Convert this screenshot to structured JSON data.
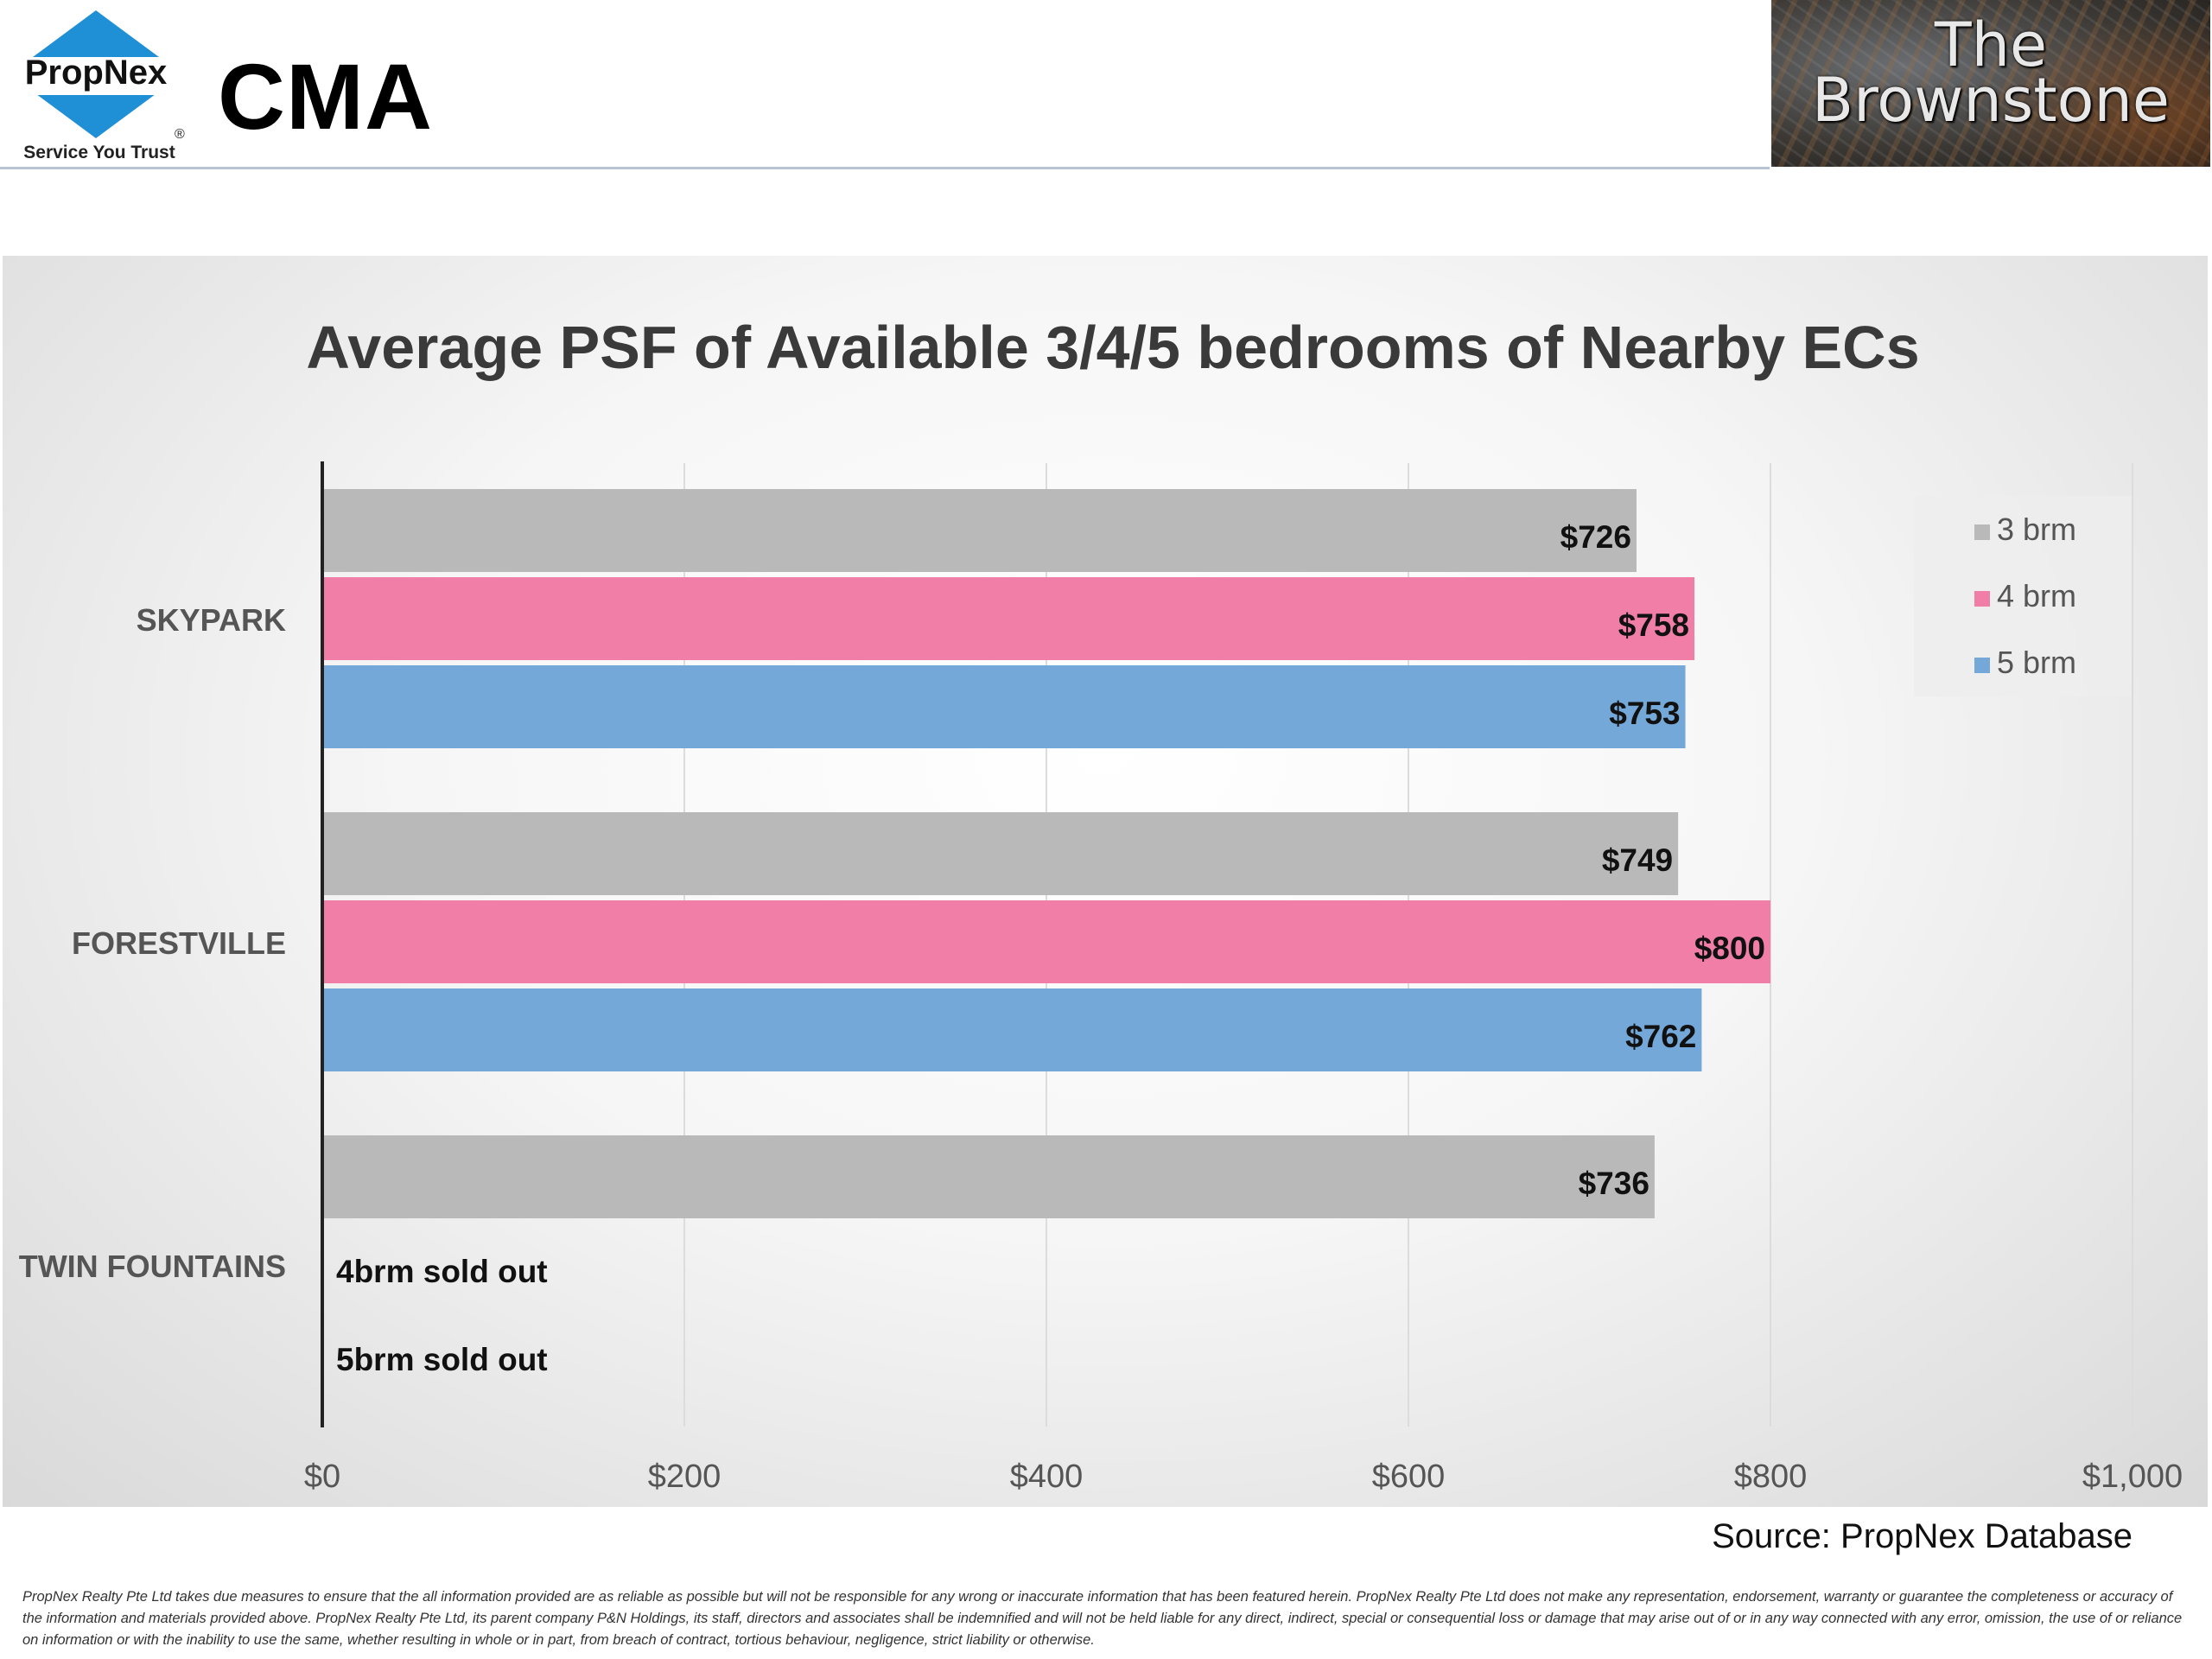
{
  "header": {
    "brand_name": "PropNex",
    "brand_tagline": "Service You Trust",
    "registered_mark": "®",
    "title": "CMA",
    "project_logo_text": "The Brownstone",
    "colors": {
      "brand_blue": "#1f8fd6",
      "brand_blue_light": "#cfe6f7"
    }
  },
  "chart_data": {
    "type": "bar",
    "orientation": "horizontal",
    "title": "Average PSF of Available 3/4/5 bedrooms of Nearby ECs",
    "xlabel": "",
    "ylabel": "",
    "xlim": [
      0,
      1000
    ],
    "x_ticks": [
      "$0",
      "$200",
      "$400",
      "$600",
      "$800",
      "$1,000"
    ],
    "x_tick_values": [
      0,
      200,
      400,
      600,
      800,
      1000
    ],
    "grid": "vertical",
    "legend_position": "top-right",
    "categories": [
      "SKYPARK",
      "FORESTVILLE",
      "TWIN FOUNTAINS"
    ],
    "series": [
      {
        "name": "3 brm",
        "color": "#b9b9b9",
        "values": [
          726,
          749,
          736
        ],
        "labels": [
          "$726",
          "$749",
          "$736"
        ]
      },
      {
        "name": "4 brm",
        "color": "#f07ea6",
        "values": [
          758,
          800,
          null
        ],
        "labels": [
          "$758",
          "$800",
          "4brm sold out"
        ]
      },
      {
        "name": "5 brm",
        "color": "#74a8d8",
        "values": [
          753,
          762,
          null
        ],
        "labels": [
          "$753",
          "$762",
          "5brm sold out"
        ]
      }
    ]
  },
  "footer": {
    "source": "Source: PropNex Database",
    "disclaimer": "PropNex Realty Pte Ltd takes due measures to ensure that the all information provided are as reliable as possible but will not be responsible for any wrong or inaccurate information that has been featured herein. PropNex Realty Pte Ltd does not make any representation, endorsement, warranty or guarantee the completeness or accuracy of the information and materials provided above. PropNex Realty Pte Ltd, its parent company P&N Holdings, its staff, directors and associates shall be indemnified and will not be held liable for any direct, indirect, special or consequential loss or damage that may arise out of or in any way connected with any error, omission, the use of or reliance on information or with the inability to use the same, whether resulting in whole or in part, from breach of contract, tortious behaviour, negligence, strict liability or otherwise."
  }
}
